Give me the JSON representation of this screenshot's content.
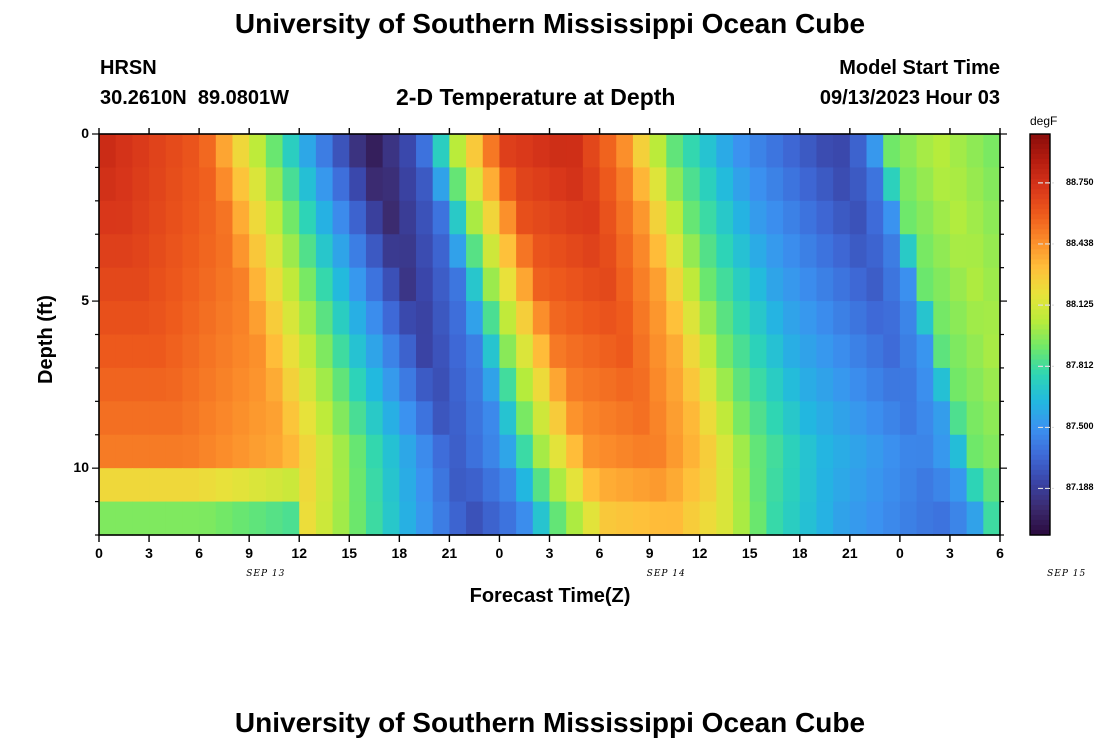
{
  "header": {
    "title": "University of Southern Mississippi Ocean Cube",
    "station": "HRSN",
    "coords": "30.2610N  89.0801W",
    "model_start_label": "Model Start Time",
    "model_start_value": "09/13/2023 Hour 03"
  },
  "footer": {
    "title": "University of Southern Mississippi Ocean Cube"
  },
  "colors": {
    "ramp": [
      "#2a0a3d",
      "#3b2a6e",
      "#3a45a8",
      "#3e6ad8",
      "#3b92f0",
      "#22b8e0",
      "#2ed6b4",
      "#6ee86a",
      "#b8ec3a",
      "#e8e23a",
      "#ffbf3a",
      "#fb8c2a",
      "#ee5a1c",
      "#d8361a",
      "#b51c10",
      "#8a0d0a"
    ]
  },
  "chart_data": {
    "type": "heatmap",
    "title": "2-D Temperature at Depth",
    "xlabel": "Forecast Time(Z)",
    "ylabel": "Depth (ft)",
    "x_tick_labels": [
      "0",
      "3",
      "6",
      "9",
      "12",
      "15",
      "18",
      "21",
      "0",
      "3",
      "6",
      "9",
      "12",
      "15",
      "18",
      "21",
      "0",
      "3",
      "6"
    ],
    "date_labels": [
      "SEP 13",
      "SEP 14",
      "SEP 15"
    ],
    "y_tick_labels": [
      "0",
      "5",
      "10"
    ],
    "y_range_ft": [
      0,
      12
    ],
    "hours_range": [
      0,
      54
    ],
    "colorbar": {
      "unit": "degF",
      "ticks": [
        "88.750",
        "88.438",
        "88.125",
        "87.812",
        "87.500",
        "87.188"
      ],
      "range": [
        86.95,
        89.0
      ]
    },
    "depth_levels_ft": [
      0,
      1,
      2,
      3,
      4,
      5,
      6,
      7,
      8,
      9,
      10,
      11,
      12
    ],
    "temperature_degF_surface_by_hour": [
      [
        0,
        88.8
      ],
      [
        6,
        88.6
      ],
      [
        9,
        88.1
      ],
      [
        12,
        87.6
      ],
      [
        16,
        87.0
      ],
      [
        19,
        87.3
      ],
      [
        21,
        88.0
      ],
      [
        24,
        88.7
      ],
      [
        28,
        88.8
      ],
      [
        31,
        88.5
      ],
      [
        34,
        87.9
      ],
      [
        38,
        87.5
      ],
      [
        44,
        87.2
      ],
      [
        46,
        87.4
      ],
      [
        47,
        87.9
      ],
      [
        50,
        88.05
      ],
      [
        54,
        87.9
      ]
    ]
  }
}
